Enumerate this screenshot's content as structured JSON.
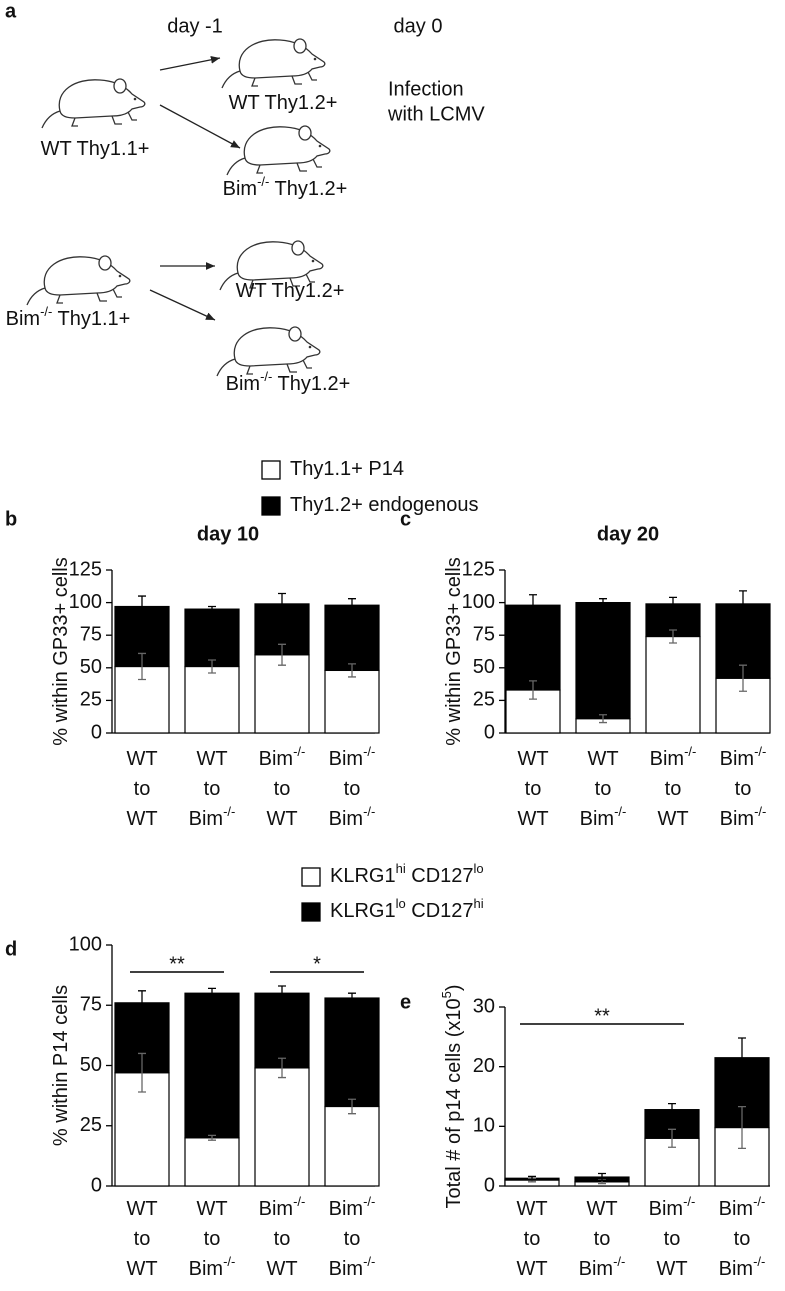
{
  "diagram": {
    "panel": "a",
    "timeline": [
      "day -1",
      "day 0"
    ],
    "event": [
      "Infection",
      "with LCMV"
    ],
    "nodes": [
      {
        "label": [
          "WT Thy1.1+"
        ]
      },
      {
        "label": [
          "WT Thy1.2+"
        ]
      },
      {
        "label": [
          "Bim",
          "-/-",
          " Thy1.2+"
        ]
      },
      {
        "label": [
          "Bim",
          "-/-",
          " Thy1.1+"
        ]
      },
      {
        "label": [
          "WT Thy1.2+"
        ]
      },
      {
        "label": [
          "Bim",
          "-/-",
          " Thy1.2+"
        ]
      }
    ]
  },
  "chart_data": [
    {
      "type": "bar",
      "panel": "b",
      "title": "day 10",
      "y_label": [
        "% within GP33+ cells"
      ],
      "categories": [
        [
          [
            "WT"
          ],
          [
            "to"
          ],
          [
            "WT"
          ]
        ],
        [
          [
            "WT"
          ],
          [
            "to"
          ],
          [
            "Bim",
            "-/-"
          ]
        ],
        [
          [
            "Bim",
            "-/-"
          ],
          [
            "to"
          ],
          [
            "WT"
          ]
        ],
        [
          [
            "Bim",
            "-/-"
          ],
          [
            "to"
          ],
          [
            "Bim",
            "-/-"
          ]
        ]
      ],
      "series": [
        {
          "name": [
            "Thy1.1+ P14"
          ],
          "color": "#ffffff",
          "values": [
            51,
            51,
            60,
            48
          ],
          "errors": [
            10,
            5,
            8,
            5
          ]
        },
        {
          "name": [
            "Thy1.2+ endogenous"
          ],
          "color": "#000000",
          "values": [
            46,
            44,
            39,
            50
          ],
          "errors": [
            8,
            2,
            8,
            5
          ]
        }
      ],
      "ylim": [
        0,
        125
      ],
      "yticks": [
        0,
        25,
        50,
        75,
        100,
        125
      ]
    },
    {
      "type": "bar",
      "panel": "c",
      "title": "day 20",
      "y_label": [
        "% within GP33+ cells"
      ],
      "categories": [
        [
          [
            "WT"
          ],
          [
            "to"
          ],
          [
            "WT"
          ]
        ],
        [
          [
            "WT"
          ],
          [
            "to"
          ],
          [
            "Bim",
            "-/-"
          ]
        ],
        [
          [
            "Bim",
            "-/-"
          ],
          [
            "to"
          ],
          [
            "WT"
          ]
        ],
        [
          [
            "Bim",
            "-/-"
          ],
          [
            "to"
          ],
          [
            "Bim",
            "-/-"
          ]
        ]
      ],
      "series": [
        {
          "color": "#ffffff",
          "values": [
            33,
            11,
            74,
            42
          ],
          "errors": [
            7,
            3,
            5,
            10
          ]
        },
        {
          "color": "#000000",
          "values": [
            65,
            89,
            25,
            57
          ],
          "errors": [
            8,
            3,
            5,
            10
          ]
        }
      ],
      "ylim": [
        0,
        125
      ],
      "yticks": [
        0,
        25,
        50,
        75,
        100,
        125
      ]
    },
    {
      "type": "bar",
      "panel": "d",
      "y_label": [
        "% within P14 cells"
      ],
      "categories": [
        [
          [
            "WT"
          ],
          [
            "to"
          ],
          [
            "WT"
          ]
        ],
        [
          [
            "WT"
          ],
          [
            "to"
          ],
          [
            "Bim",
            "-/-"
          ]
        ],
        [
          [
            "Bim",
            "-/-"
          ],
          [
            "to"
          ],
          [
            "WT"
          ]
        ],
        [
          [
            "Bim",
            "-/-"
          ],
          [
            "to"
          ],
          [
            "Bim",
            "-/-"
          ]
        ]
      ],
      "series": [
        {
          "name": [
            "KLRG1",
            "hi",
            " CD127",
            "lo"
          ],
          "color": "#ffffff",
          "values": [
            47,
            20,
            49,
            33
          ],
          "errors": [
            8,
            1,
            4,
            3
          ]
        },
        {
          "name": [
            "KLRG1",
            "lo",
            " CD127",
            "hi"
          ],
          "color": "#000000",
          "values": [
            29,
            60,
            31,
            45
          ],
          "errors": [
            5,
            2,
            3,
            2
          ]
        }
      ],
      "ylim": [
        0,
        100
      ],
      "yticks": [
        0,
        25,
        50,
        75,
        100
      ],
      "brackets": [
        {
          "label": "**",
          "between": [
            0,
            1
          ]
        },
        {
          "label": "*",
          "between": [
            2,
            3
          ]
        }
      ]
    },
    {
      "type": "bar",
      "panel": "e",
      "y_label": [
        "Total # of p14 cells (x10",
        "5",
        ")"
      ],
      "categories": [
        [
          [
            "WT"
          ],
          [
            "to"
          ],
          [
            "WT"
          ]
        ],
        [
          [
            "WT"
          ],
          [
            "to"
          ],
          [
            "Bim",
            "-/-"
          ]
        ],
        [
          [
            "Bim",
            "-/-"
          ],
          [
            "to"
          ],
          [
            "WT"
          ]
        ],
        [
          [
            "Bim",
            "-/-"
          ],
          [
            "to"
          ],
          [
            "Bim",
            "-/-"
          ]
        ]
      ],
      "series": [
        {
          "color": "#ffffff",
          "values": [
            1.0,
            0.7,
            8,
            9.8
          ],
          "errors": [
            0.3,
            0.3,
            1.5,
            3.5
          ]
        },
        {
          "color": "#000000",
          "values": [
            0.3,
            0.8,
            4.8,
            11.7
          ],
          "errors": [
            0.3,
            0.6,
            1,
            3.3
          ]
        }
      ],
      "ylim": [
        0,
        30
      ],
      "yticks": [
        0,
        10,
        20,
        30
      ],
      "brackets": [
        {
          "label": "**",
          "between": [
            0,
            2
          ]
        }
      ]
    }
  ]
}
